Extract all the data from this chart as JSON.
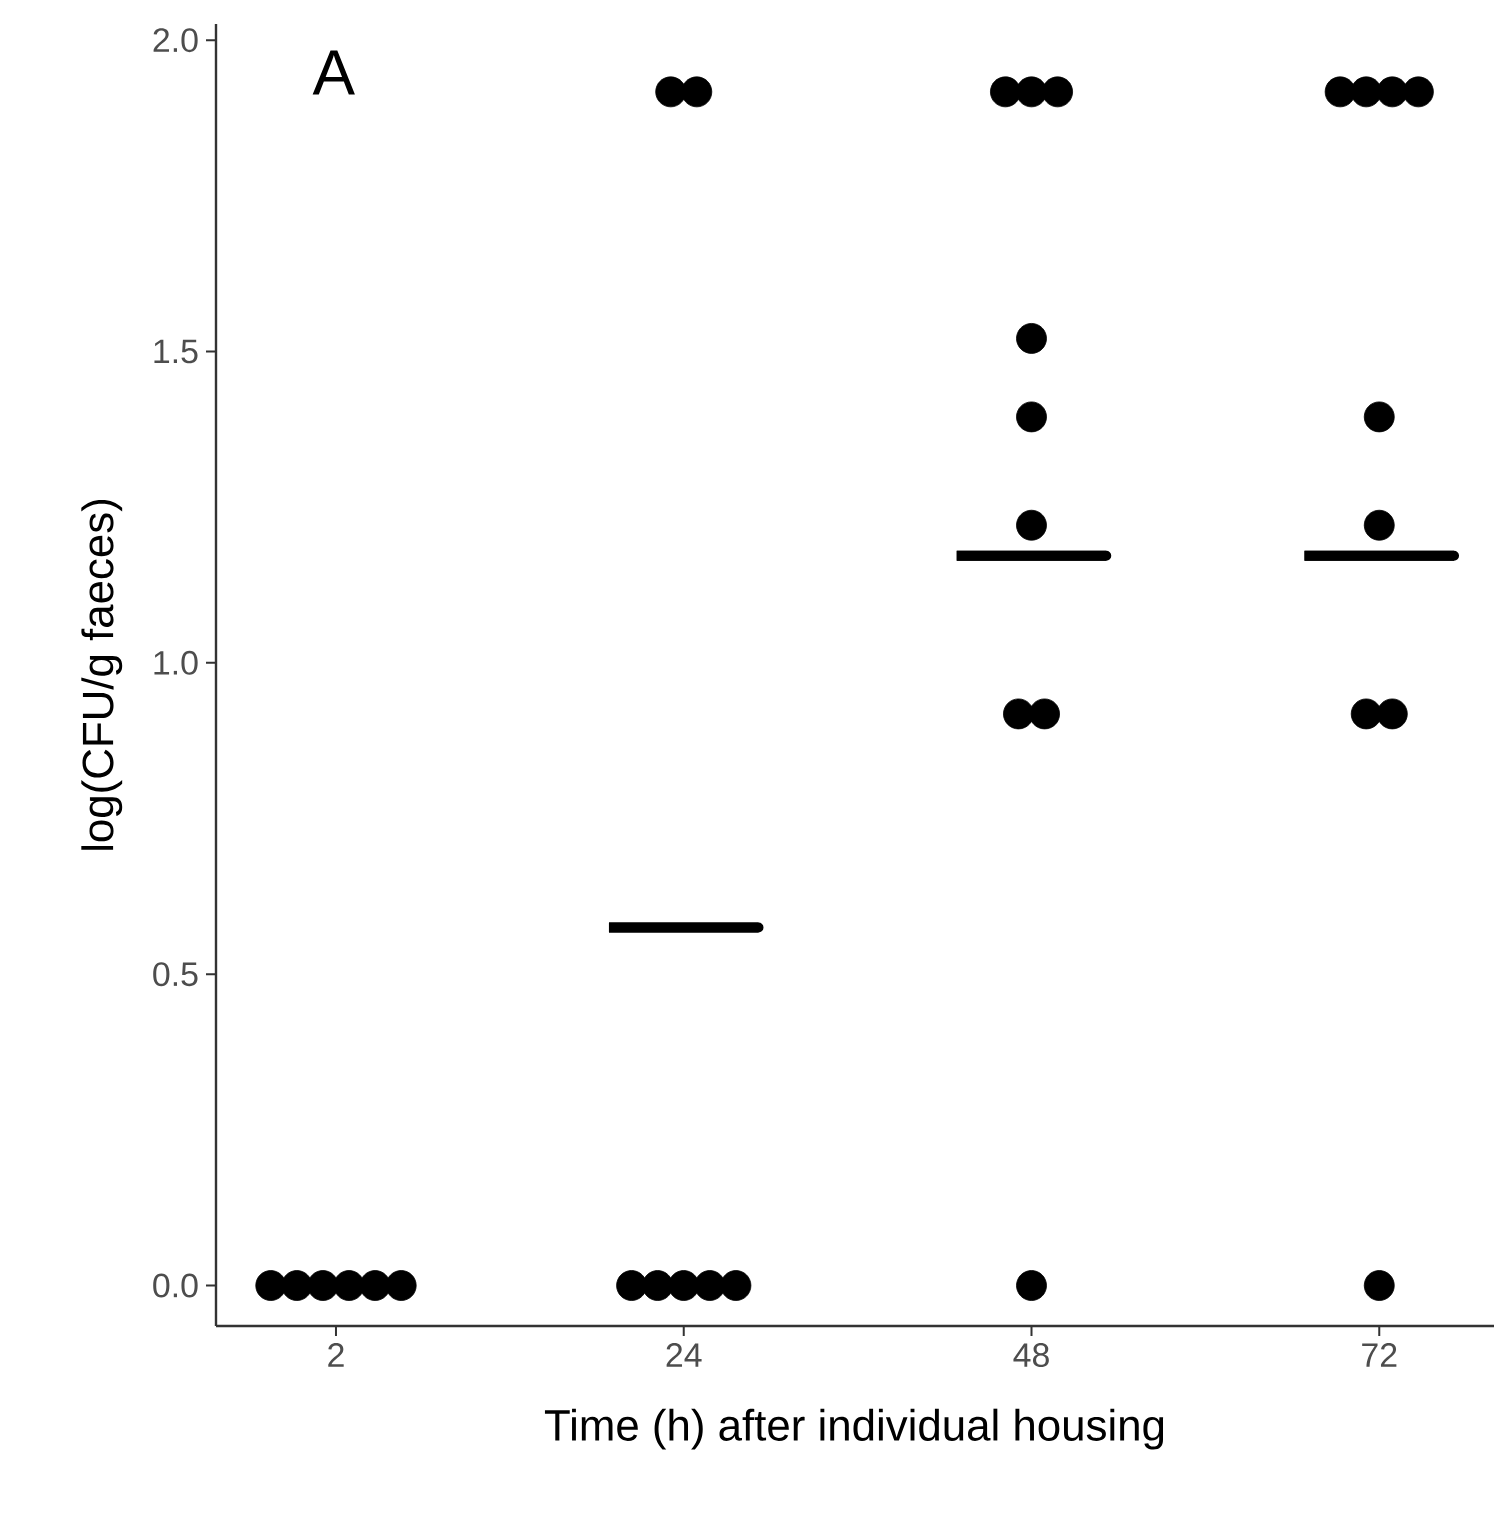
{
  "chart_data": {
    "type": "scatter",
    "xlabel": "Time (h) after individual housing",
    "ylabel": "log(CFU/g faeces)",
    "annotations": [
      "A"
    ],
    "categories": [
      "2",
      "24",
      "48",
      "72"
    ],
    "ylim": [
      -0.065,
      2.026
    ],
    "yticks": [
      {
        "value": 0,
        "label": "0.0"
      },
      {
        "value": 0.5,
        "label": "0.5"
      },
      {
        "value": 1,
        "label": "1.0"
      },
      {
        "value": 1.5,
        "label": "1.5"
      },
      {
        "value": 2,
        "label": "2.0"
      }
    ],
    "grid": false,
    "series": [
      {
        "color": "#000000",
        "x": [
          "2",
          "2",
          "2",
          "2",
          "2",
          "2",
          "24",
          "24",
          "24",
          "24",
          "24",
          "24",
          "24",
          "48",
          "48",
          "48",
          "48",
          "48",
          "48",
          "48",
          "48",
          "48",
          "72",
          "72",
          "72",
          "72",
          "72",
          "72",
          "72",
          "72",
          "72"
        ],
        "values": [
          0,
          0,
          0,
          0,
          0,
          0,
          1.917,
          1.917,
          0,
          0,
          0,
          0,
          0,
          1.917,
          1.917,
          1.917,
          1.521,
          1.395,
          1.221,
          0.918,
          0.918,
          0,
          1.917,
          1.917,
          1.917,
          1.917,
          1.395,
          1.221,
          0.918,
          0.918,
          0
        ]
      },
      {
        "type": "box",
        "color": "#000000",
        "boxes": [
          null,
          {
            "low": 0.575,
            "q1": 0.575,
            "median": 0.575,
            "q3": 0.575,
            "high": 0.575
          },
          {
            "low": 1.172,
            "q1": 1.172,
            "median": 1.172,
            "q3": 1.172,
            "high": 1.172
          },
          {
            "low": 1.172,
            "q1": 1.172,
            "median": 1.172,
            "q3": 1.172,
            "high": 1.172
          }
        ]
      }
    ]
  }
}
